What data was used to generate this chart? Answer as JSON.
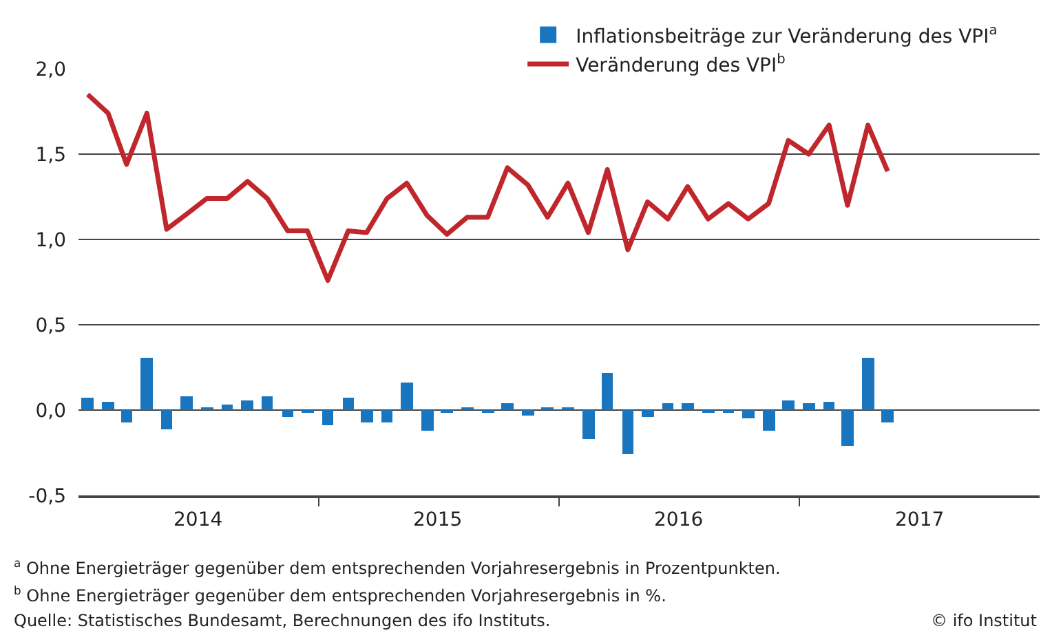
{
  "chart_data": {
    "type": "bar",
    "x": [
      "2014-01-15",
      "2014-02-15",
      "2014-03-15",
      "2014-04-15",
      "2014-05-15",
      "2014-06-15",
      "2014-07-15",
      "2014-08-15",
      "2014-09-15",
      "2014-10-15",
      "2014-11-15",
      "2014-12-15",
      "2015-01-15",
      "2015-02-15",
      "2015-03-15",
      "2015-04-15",
      "2015-05-15",
      "2015-06-15",
      "2015-07-15",
      "2015-08-15",
      "2015-09-15",
      "2015-10-15",
      "2015-11-15",
      "2015-12-15",
      "2016-01-15",
      "2016-02-15",
      "2016-03-15",
      "2016-04-15",
      "2016-05-15",
      "2016-06-15",
      "2016-07-15",
      "2016-08-15",
      "2016-09-15",
      "2016-10-15",
      "2016-11-15",
      "2016-12-15",
      "2017-01-15",
      "2017-02-15",
      "2017-03-15",
      "2017-04-15",
      "2017-05-15"
    ],
    "series": [
      {
        "name": "Inflationsbeiträge zur Veränderung des VPI$^{a}$",
        "color": "#1a75bf",
        "values": [
          0.07,
          0.05,
          -0.07,
          0.31,
          -0.11,
          0.08,
          0.01,
          0.03,
          0.06,
          0.08,
          -0.04,
          -0.01,
          -0.09,
          0.07,
          -0.07,
          -0.07,
          0.16,
          -0.12,
          -0.01,
          0.02,
          -0.02,
          0.04,
          -0.03,
          0.01,
          0.02,
          -0.17,
          0.22,
          -0.26,
          -0.04,
          0.04,
          0.04,
          -0.02,
          -0.02,
          -0.05,
          -0.12,
          0.06,
          0.04,
          0.05,
          -0.21,
          0.31,
          -0.07
        ]
      },
      {
        "name": "Veränderung des VPI$^{b}$",
        "type": "line",
        "color": "#c0272d",
        "values": [
          1.85,
          1.74,
          1.44,
          1.74,
          1.06,
          1.15,
          1.24,
          1.24,
          1.34,
          1.24,
          1.05,
          1.05,
          0.76,
          1.05,
          1.04,
          1.24,
          1.33,
          1.14,
          1.03,
          1.13,
          1.13,
          1.42,
          1.32,
          1.13,
          1.33,
          1.04,
          1.41,
          0.94,
          1.22,
          1.12,
          1.31,
          1.12,
          1.21,
          1.12,
          1.21,
          1.58,
          1.5,
          1.67,
          1.2,
          1.67,
          1.4
        ]
      }
    ],
    "xlim": [
      "2014-01-01",
      "2018-01-01"
    ],
    "xticks": [
      {
        "value": "2015-01-01",
        "label": null
      },
      {
        "value": "2016-01-01",
        "label": null
      },
      {
        "value": "2017-01-01",
        "label": null
      },
      {
        "value": "2014-07-02",
        "label": "2014"
      },
      {
        "value": "2015-07-02",
        "label": "2015"
      },
      {
        "value": "2016-07-02",
        "label": "2016"
      },
      {
        "value": "2017-07-02",
        "label": "2017"
      }
    ],
    "ylim": [
      -0.5,
      2.0
    ],
    "yticks": [
      {
        "value": -0.5,
        "label": "-0,5"
      },
      {
        "value": 0,
        "label": "0,0"
      },
      {
        "value": 0.5,
        "label": "0,5"
      },
      {
        "value": 1.0,
        "label": "1,0"
      },
      {
        "value": 1.5,
        "label": "1,5"
      },
      {
        "value": 2.0,
        "label": "2,0"
      }
    ],
    "grid": "y",
    "legend": "top right",
    "line_style": "solid",
    "marker": "none",
    "annotations": [
      "$^{a}$ Ohne Energieträger gegenüber dem entsprechenden Vorjahresergebnis in Prozentpunkten.",
      "$^{b}$ Ohne Energieträger gegenüber dem entsprechenden Vorjahresergebnis in %.",
      "Quelle: Statistisches Bundesamt, Berechnungen des ifo Instituts.",
      "© ifo Institut"
    ]
  }
}
